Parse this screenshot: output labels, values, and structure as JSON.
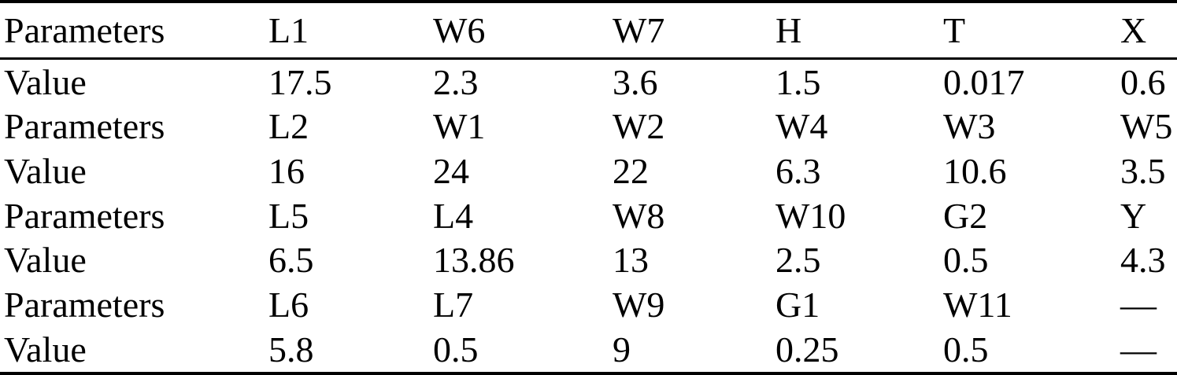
{
  "page": {
    "background": "#ffffff"
  },
  "table": {
    "description": "Parameters and values table",
    "colors": {
      "text": "#000000",
      "rule": "#000000",
      "background": "#ffffff"
    },
    "header": [
      "Parameters",
      "L1",
      "W6",
      "W7",
      "H",
      "T",
      "X"
    ],
    "rows": [
      [
        "Value",
        "17.5",
        "2.3",
        "3.6",
        "1.5",
        "0.017",
        "0.6"
      ],
      [
        "Parameters",
        "L2",
        "W1",
        "W2",
        "W4",
        "W3",
        "W5"
      ],
      [
        "Value",
        "16",
        "24",
        "22",
        "6.3",
        "10.6",
        "3.5"
      ],
      [
        "Parameters",
        "L5",
        "L4",
        "W8",
        "W10",
        "G2",
        "Y"
      ],
      [
        "Value",
        "6.5",
        "13.86",
        "13",
        "2.5",
        "0.5",
        "4.3"
      ],
      [
        "Parameters",
        "L6",
        "L7",
        "W9",
        "G1",
        "W11",
        "—"
      ],
      [
        "Value",
        "5.8",
        "0.5",
        "9",
        "0.25",
        "0.5",
        "—"
      ]
    ]
  }
}
